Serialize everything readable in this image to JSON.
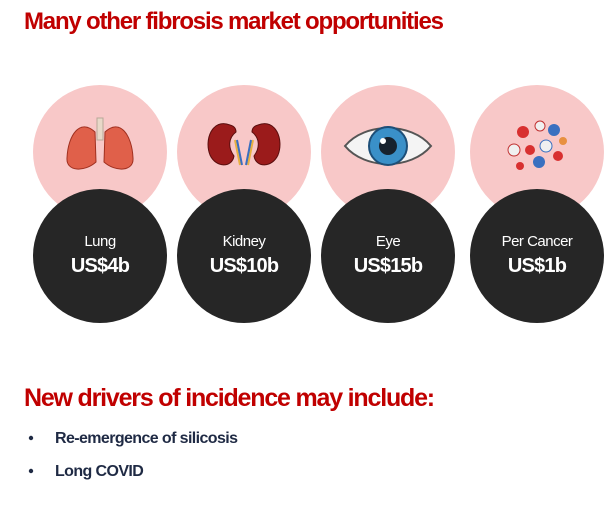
{
  "header": {
    "title": "Many other fibrosis market opportunities"
  },
  "markets": [
    {
      "label": "Lung",
      "value": "US$4b"
    },
    {
      "label": "Kidney",
      "value": "US$10b"
    },
    {
      "label": "Eye",
      "value": "US$15b"
    },
    {
      "label": "Per Cancer",
      "value": "US$1b"
    }
  ],
  "drivers": {
    "heading": "New drivers of incidence may include:",
    "items": [
      "Re-emergence of silicosis",
      "Long COVID"
    ]
  }
}
